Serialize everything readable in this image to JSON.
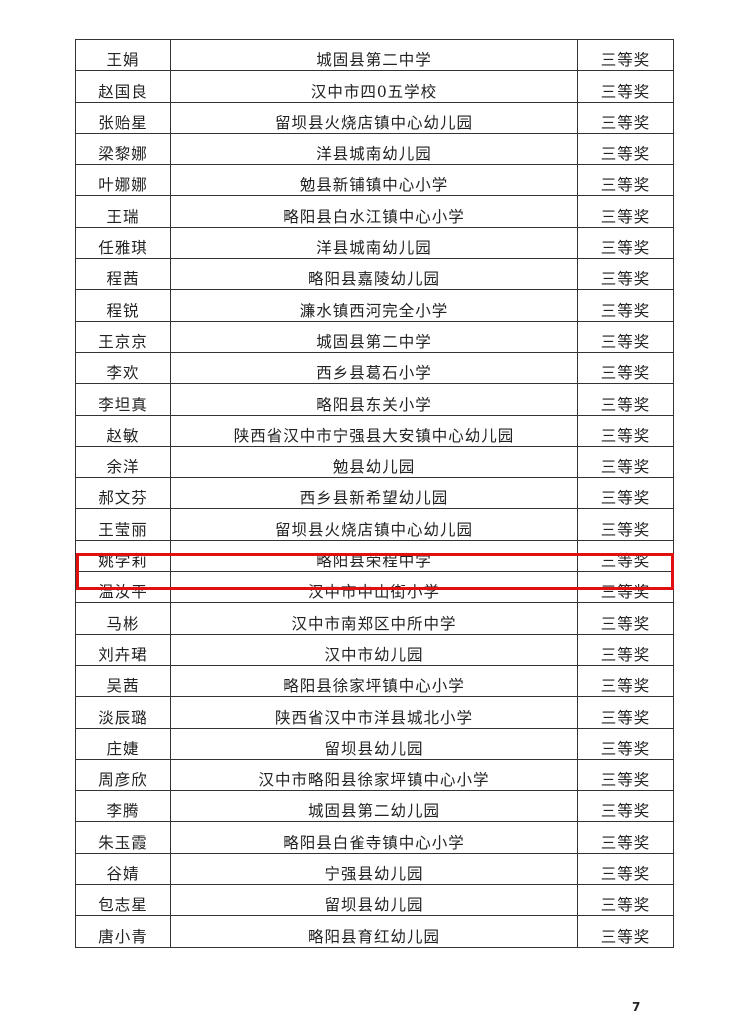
{
  "rows": [
    {
      "name": "王娟",
      "org": "城固县第二中学",
      "award": "三等奖"
    },
    {
      "name": "赵国良",
      "org": "汉中市四0五学校",
      "award": "三等奖"
    },
    {
      "name": "张贻星",
      "org": "留坝县火烧店镇中心幼儿园",
      "award": "三等奖"
    },
    {
      "name": "梁黎娜",
      "org": "洋县城南幼儿园",
      "award": "三等奖"
    },
    {
      "name": "叶娜娜",
      "org": "勉县新铺镇中心小学",
      "award": "三等奖"
    },
    {
      "name": "王瑞",
      "org": "略阳县白水江镇中心小学",
      "award": "三等奖"
    },
    {
      "name": "任雅琪",
      "org": "洋县城南幼儿园",
      "award": "三等奖"
    },
    {
      "name": "程茜",
      "org": "略阳县嘉陵幼儿园",
      "award": "三等奖"
    },
    {
      "name": "程锐",
      "org": "濂水镇西河完全小学",
      "award": "三等奖"
    },
    {
      "name": "王京京",
      "org": "城固县第二中学",
      "award": "三等奖"
    },
    {
      "name": "李欢",
      "org": "西乡县葛石小学",
      "award": "三等奖"
    },
    {
      "name": "李坦真",
      "org": "略阳县东关小学",
      "award": "三等奖"
    },
    {
      "name": "赵敏",
      "org": "陕西省汉中市宁强县大安镇中心幼儿园",
      "award": "三等奖"
    },
    {
      "name": "余洋",
      "org": "勉县幼儿园",
      "award": "三等奖"
    },
    {
      "name": "郝文芬",
      "org": "西乡县新希望幼儿园",
      "award": "三等奖"
    },
    {
      "name": "王莹丽",
      "org": "留坝县火烧店镇中心幼儿园",
      "award": "三等奖"
    },
    {
      "name": "姚学莉",
      "org": "略阳县荣程中学",
      "award": "三等奖"
    },
    {
      "name": "温汝平",
      "org": "汉中市中山街小学",
      "award": "三等奖"
    },
    {
      "name": "马彬",
      "org": "汉中市南郑区中所中学",
      "award": "三等奖"
    },
    {
      "name": "刘卉珺",
      "org": "汉中市幼儿园",
      "award": "三等奖"
    },
    {
      "name": "吴茜",
      "org": "略阳县徐家坪镇中心小学",
      "award": "三等奖"
    },
    {
      "name": "淡辰璐",
      "org": "陕西省汉中市洋县城北小学",
      "award": "三等奖"
    },
    {
      "name": "庄婕",
      "org": "留坝县幼儿园",
      "award": "三等奖"
    },
    {
      "name": "周彦欣",
      "org": "汉中市略阳县徐家坪镇中心小学",
      "award": "三等奖"
    },
    {
      "name": "李腾",
      "org": "城固县第二幼儿园",
      "award": "三等奖"
    },
    {
      "name": "朱玉霞",
      "org": "略阳县白雀寺镇中心小学",
      "award": "三等奖"
    },
    {
      "name": "谷婧",
      "org": "宁强县幼儿园",
      "award": "三等奖"
    },
    {
      "name": "包志星",
      "org": "留坝县幼儿园",
      "award": "三等奖"
    },
    {
      "name": "唐小青",
      "org": "略阳县育红幼儿园",
      "award": "三等奖"
    }
  ],
  "highlight_row": 16,
  "highlight_color": "#e01010",
  "page_number": "7"
}
